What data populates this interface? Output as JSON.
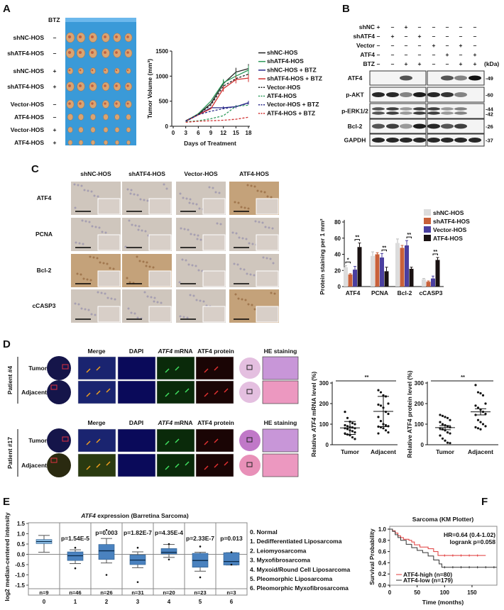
{
  "panel_labels": {
    "a": "A",
    "b": "B",
    "c": "C",
    "d": "D",
    "e": "E",
    "f": "F"
  },
  "panel_a": {
    "btz_header": "BTZ",
    "rows": [
      {
        "label": "shNC-HOS",
        "btz": "–"
      },
      {
        "label": "shATF4-HOS",
        "btz": "–"
      },
      {
        "label": "shNC-HOS",
        "btz": "+"
      },
      {
        "label": "shATF4-HOS",
        "btz": "+"
      },
      {
        "label": "Vector-HOS",
        "btz": "–"
      },
      {
        "label": "ATF4-HOS",
        "btz": "–"
      },
      {
        "label": "Vector-HOS",
        "btz": "+"
      },
      {
        "label": "ATF4-HOS",
        "btz": "+"
      }
    ],
    "photo_background": "#3a9ad8"
  },
  "panel_b": {
    "conditions": [
      {
        "label": "shNC",
        "signs": [
          "+",
          "–",
          "+",
          "–",
          "–",
          "–",
          "–",
          "–"
        ]
      },
      {
        "label": "shATF4",
        "signs": [
          "–",
          "+",
          "–",
          "+",
          "–",
          "–",
          "–",
          "–"
        ]
      },
      {
        "label": "Vector",
        "signs": [
          "–",
          "–",
          "–",
          "–",
          "+",
          "–",
          "+",
          "–"
        ]
      },
      {
        "label": "ATF4",
        "signs": [
          "–",
          "–",
          "–",
          "–",
          "–",
          "+",
          "–",
          "+"
        ]
      },
      {
        "label": "BTZ",
        "signs": [
          "–",
          "–",
          "+",
          "+",
          "–",
          "–",
          "+",
          "+"
        ]
      }
    ],
    "kda_label": "(kDa)",
    "blots": [
      {
        "label": "ATF4",
        "mw": [
          "-49"
        ],
        "band_intensity": [
          0,
          0,
          0.7,
          0,
          0,
          0.7,
          0.5,
          1
        ]
      },
      {
        "label": "p-AKT",
        "mw": [
          "-60"
        ],
        "band_intensity": [
          0.9,
          0.9,
          0.5,
          0.95,
          0.9,
          0.85,
          0.5,
          0
        ]
      },
      {
        "label": "p-ERK1/2",
        "mw": [
          "-44",
          "-42"
        ],
        "band_intensity": [
          0.7,
          0.8,
          0.4,
          0.8,
          0.8,
          0.4,
          0.5,
          0
        ]
      },
      {
        "label": "Bcl-2",
        "mw": [
          "-26"
        ],
        "band_intensity": [
          0.7,
          0.8,
          0.4,
          0.95,
          0.9,
          0.7,
          0.8,
          0
        ]
      },
      {
        "label": "GAPDH",
        "mw": [
          "-37"
        ],
        "band_intensity": [
          0.9,
          0.9,
          0.9,
          0.9,
          0.9,
          0.9,
          0.9,
          0.9
        ]
      }
    ]
  },
  "panel_c": {
    "columns": [
      "shNC-HOS",
      "shATF4-HOS",
      "Vector-HOS",
      "ATF4-HOS"
    ],
    "rows": [
      "ATF4",
      "PCNA",
      "Bcl-2",
      "cCASP3"
    ]
  },
  "panel_d": {
    "headers": {
      "merge": "Merge",
      "dapi": "DAPI",
      "mrna_gene": "ATF4",
      "mrna_suffix": " mRNA",
      "protein": "ATF4 protein",
      "he": "HE staining"
    },
    "patients": [
      {
        "label": "Patient #4",
        "rows": [
          "Tumor",
          "Adjacent"
        ]
      },
      {
        "label": "Patient #17",
        "rows": [
          "Tumor",
          "Adjacent"
        ]
      }
    ]
  },
  "panel_e": {
    "legend": [
      "0. Normal",
      "1. Dedifferentiated Liposarcoma",
      "2. Leiomyosarcoma",
      "3. Myxofibrosarcoma",
      "4. Myxoid/Round Cell Liposarcoma",
      "5. Pleomorphic Liposarcoma",
      "6. Pleomorphic Myxofibrosarcoma"
    ]
  },
  "chart_data": [
    {
      "type": "line",
      "xlabel": "Days of Treatment",
      "ylabel": "Tumor Volume (mm³)",
      "x": [
        3,
        6,
        9,
        12,
        15,
        18
      ],
      "xlim": [
        0,
        18
      ],
      "ylim": [
        0,
        1500
      ],
      "xticks": [
        0,
        3,
        6,
        9,
        12,
        15,
        18
      ],
      "yticks": [
        0,
        500,
        1000,
        1500
      ],
      "series": [
        {
          "name": "shNC-HOS",
          "color": "#222222",
          "dashed": false,
          "values": [
            110,
            240,
            450,
            850,
            1080,
            1150
          ]
        },
        {
          "name": "shATF4-HOS",
          "color": "#2e9a5a",
          "dashed": false,
          "values": [
            100,
            250,
            500,
            870,
            1000,
            1120
          ]
        },
        {
          "name": "shNC-HOS + BTZ",
          "color": "#2a2a8a",
          "dashed": false,
          "values": [
            100,
            230,
            370,
            370,
            390,
            470
          ]
        },
        {
          "name": "shATF4-HOS + BTZ",
          "color": "#d03030",
          "dashed": false,
          "values": [
            100,
            230,
            350,
            750,
            930,
            960
          ]
        },
        {
          "name": "Vector-HOS",
          "color": "#222222",
          "dashed": true,
          "values": [
            100,
            240,
            420,
            800,
            950,
            1040
          ]
        },
        {
          "name": "ATF4-HOS",
          "color": "#2e9a5a",
          "dashed": true,
          "values": [
            90,
            110,
            150,
            210,
            400,
            420
          ]
        },
        {
          "name": "Vector-HOS + BTZ",
          "color": "#2a2a8a",
          "dashed": true,
          "values": [
            100,
            230,
            300,
            350,
            390,
            460
          ]
        },
        {
          "name": "ATF4-HOS + BTZ",
          "color": "#d03030",
          "dashed": true,
          "values": [
            80,
            100,
            110,
            120,
            140,
            180
          ]
        }
      ]
    },
    {
      "type": "bar",
      "ylabel": "Protein staining per 1 mm²",
      "ylim": [
        0,
        80
      ],
      "yticks": [
        0,
        20,
        40,
        60,
        80
      ],
      "categories": [
        "ATF4",
        "PCNA",
        "Bcl-2",
        "cCASP3"
      ],
      "legend": "top-right",
      "series": [
        {
          "name": "shNC-HOS",
          "color": "#dcdcdc",
          "values": [
            24,
            38,
            54,
            9
          ],
          "errors": [
            2,
            5,
            5,
            1
          ]
        },
        {
          "name": "shATF4-HOS",
          "color": "#c8603a",
          "values": [
            15,
            40,
            48,
            6
          ],
          "errors": [
            1,
            2,
            3,
            1
          ]
        },
        {
          "name": "Vector-HOS",
          "color": "#4a3fa0",
          "values": [
            21,
            36,
            51,
            10
          ],
          "errors": [
            4,
            5,
            6,
            3
          ]
        },
        {
          "name": "ATF4-HOS",
          "color": "#1a1212",
          "values": [
            49,
            19,
            22,
            33
          ],
          "errors": [
            5,
            5,
            2,
            3
          ]
        }
      ],
      "significance": [
        {
          "category": "ATF4",
          "pair": [
            "shNC-HOS",
            "shATF4-HOS"
          ],
          "label": "*"
        },
        {
          "category": "ATF4",
          "pair": [
            "Vector-HOS",
            "ATF4-HOS"
          ],
          "label": "**"
        },
        {
          "category": "PCNA",
          "pair": [
            "Vector-HOS",
            "ATF4-HOS"
          ],
          "label": "**"
        },
        {
          "category": "Bcl-2",
          "pair": [
            "Vector-HOS",
            "ATF4-HOS"
          ],
          "label": "**"
        },
        {
          "category": "cCASP3",
          "pair": [
            "Vector-HOS",
            "ATF4-HOS"
          ],
          "label": "**"
        }
      ]
    },
    {
      "type": "scatter",
      "ylabel_prefix": "Relative ",
      "ylabel_gene": "ATF4",
      "ylabel_suffix": " mRNA level (%)",
      "categories": [
        "Tumor",
        "Adjacent"
      ],
      "ylim": [
        0,
        300
      ],
      "yticks": [
        0,
        100,
        200,
        300
      ],
      "significance": "**",
      "groups": [
        {
          "name": "Tumor",
          "values": [
            160,
            130,
            112,
            105,
            100,
            95,
            90,
            86,
            84,
            80,
            80,
            76,
            70,
            66,
            60,
            55,
            50,
            46,
            36,
            28
          ],
          "center": 82,
          "err": [
            50,
            113
          ]
        },
        {
          "name": "Adjacent",
          "values": [
            265,
            255,
            240,
            235,
            200,
            195,
            190,
            180,
            160,
            150,
            135,
            115,
            100,
            95,
            90,
            88,
            85,
            80,
            70,
            60,
            55
          ],
          "center": 162,
          "err": [
            88,
            235
          ]
        }
      ]
    },
    {
      "type": "scatter",
      "ylabel": "Relative ATF4 protein level (%)",
      "categories": [
        "Tumor",
        "Adjacent"
      ],
      "ylim": [
        0,
        300
      ],
      "yticks": [
        0,
        100,
        200,
        300
      ],
      "significance": "**",
      "groups": [
        {
          "name": "Tumor",
          "values": [
            145,
            140,
            135,
            130,
            120,
            110,
            100,
            95,
            90,
            85,
            80,
            75,
            70,
            60,
            55,
            45,
            30,
            20,
            10,
            8
          ],
          "center": 83,
          "err": [
            73,
            93
          ]
        },
        {
          "name": "Adjacent",
          "values": [
            290,
            255,
            250,
            240,
            200,
            190,
            180,
            170,
            160,
            150,
            145,
            120,
            110,
            100,
            90,
            85,
            80,
            75
          ],
          "center": 160,
          "err": [
            145,
            175
          ]
        }
      ]
    },
    {
      "type": "box",
      "title_gene": "ATF4",
      "title_suffix": " expression (Barretina Sarcoma)",
      "ylabel": "log2 median-centered intensity",
      "ylim": [
        -1.5,
        1.5
      ],
      "yticks": [
        1.5,
        1.0,
        0.5,
        0.0,
        -0.5,
        -1.0,
        -1.5
      ],
      "yticklabels": [
        "1.5",
        "1.0",
        "0.5",
        "0.0",
        "-0.5",
        "-1.0",
        "-1.5"
      ],
      "categories": [
        "0",
        "1",
        "2",
        "3",
        "4",
        "5",
        "6"
      ],
      "groups": [
        {
          "n": "n=9",
          "p": "",
          "median": 0.62,
          "q1": 0.52,
          "q3": 0.72,
          "low": 0.1,
          "high": 0.92,
          "outliers": [],
          "color": "#8ec0e8"
        },
        {
          "n": "n=46",
          "p": "p=1.54E-5",
          "median": -0.07,
          "q1": -0.3,
          "q3": 0.12,
          "low": -0.45,
          "high": 0.22,
          "outliers": [
            0.32,
            -0.68
          ],
          "color": "#4a82bf"
        },
        {
          "n": "n=26",
          "p": "p=0.003",
          "median": 0.17,
          "q1": -0.25,
          "q3": 0.48,
          "low": -0.42,
          "high": 0.77,
          "outliers": [
            1.18,
            -1.0
          ],
          "color": "#4a82bf"
        },
        {
          "n": "n=31",
          "p": "p=1.82E-7",
          "median": -0.28,
          "q1": -0.5,
          "q3": -0.03,
          "low": -0.65,
          "high": 0.12,
          "outliers": [
            0.32,
            -1.35
          ],
          "color": "#4a82bf"
        },
        {
          "n": "n=20",
          "p": "p=4.35E-4",
          "median": 0.1,
          "q1": 0.02,
          "q3": 0.28,
          "low": -0.15,
          "high": 0.48,
          "outliers": [
            0.5,
            -0.25
          ],
          "color": "#4a82bf"
        },
        {
          "n": "n=23",
          "p": "p=2.33E-7",
          "median": -0.3,
          "q1": -0.63,
          "q3": 0.05,
          "low": -0.82,
          "high": 0.1,
          "outliers": [
            0.38,
            -1.12
          ],
          "color": "#4a82bf"
        },
        {
          "n": "n=3",
          "p": "p=0.013",
          "median": -0.35,
          "q1": -0.52,
          "q3": 0.08,
          "low": -0.52,
          "high": 0.08,
          "outliers": [
            0.1,
            -0.5
          ],
          "color": "#4a82bf"
        }
      ]
    },
    {
      "type": "line",
      "title": "Sarcoma (KM Plotter)",
      "xlabel": "Time (months)",
      "ylabel": "Survival Probability",
      "xlim": [
        0,
        195
      ],
      "ylim": [
        0,
        1
      ],
      "xticks": [
        0,
        50,
        100,
        150
      ],
      "yticks": [
        0,
        0.2,
        0.4,
        0.6,
        0.8,
        1.0
      ],
      "yticklabels": [
        "0.0",
        "0.2",
        "0.4",
        "0.6",
        "0.8",
        "1.0"
      ],
      "annotation": [
        "HR=0.64 (0.4-1.02)",
        "logrank p=0.058"
      ],
      "legend": "bottom-left",
      "series": [
        {
          "name": "ATF4-high (n=80)",
          "color": "#e03a3a",
          "steps": [
            [
              0,
              1
            ],
            [
              5,
              0.97
            ],
            [
              10,
              0.93
            ],
            [
              15,
              0.88
            ],
            [
              20,
              0.85
            ],
            [
              25,
              0.82
            ],
            [
              35,
              0.8
            ],
            [
              40,
              0.77
            ],
            [
              45,
              0.72
            ],
            [
              55,
              0.68
            ],
            [
              70,
              0.65
            ],
            [
              80,
              0.6
            ],
            [
              88,
              0.53
            ],
            [
              175,
              0.53
            ]
          ]
        },
        {
          "name": "ATF4-low (n=179)",
          "color": "#333333",
          "steps": [
            [
              0,
              1
            ],
            [
              5,
              0.96
            ],
            [
              10,
              0.9
            ],
            [
              15,
              0.85
            ],
            [
              20,
              0.8
            ],
            [
              30,
              0.73
            ],
            [
              40,
              0.67
            ],
            [
              50,
              0.62
            ],
            [
              60,
              0.58
            ],
            [
              70,
              0.52
            ],
            [
              80,
              0.45
            ],
            [
              90,
              0.38
            ],
            [
              95,
              0.32
            ],
            [
              195,
              0.32
            ]
          ]
        }
      ]
    }
  ]
}
